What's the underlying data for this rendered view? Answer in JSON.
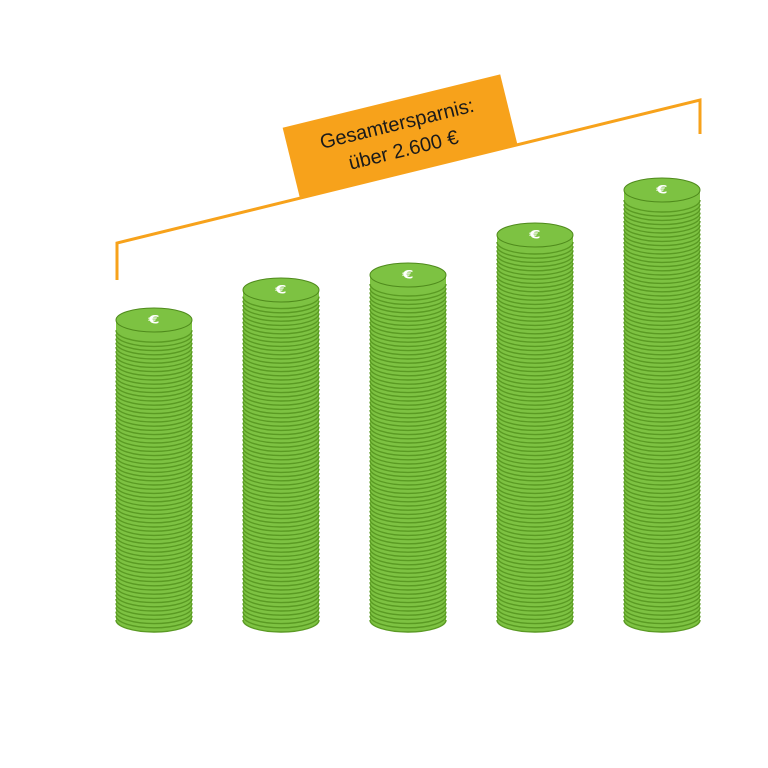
{
  "colors": {
    "coin_light": "#7dc242",
    "coin_dark": "#5a9a23",
    "coin_edge": "#4f8a1c",
    "bracket": "#f7a21b",
    "label_bg": "#f7a21b",
    "label_text": "#1a1a1a",
    "currency_symbol": "#ffffff"
  },
  "icons": {
    "coin_top": "euro-sign-icon"
  },
  "annotation": {
    "line1": "Gesamtersparnis:",
    "line2": "über 2.600 €"
  },
  "chart_data": {
    "type": "bar",
    "style": "coin-stacks",
    "categories": [
      "",
      "",
      "",
      "",
      ""
    ],
    "values": [
      300,
      330,
      345,
      385,
      430
    ],
    "currency_symbol": "€",
    "title": "",
    "xlabel": "",
    "ylabel": "",
    "grid": false,
    "legend": "none"
  }
}
